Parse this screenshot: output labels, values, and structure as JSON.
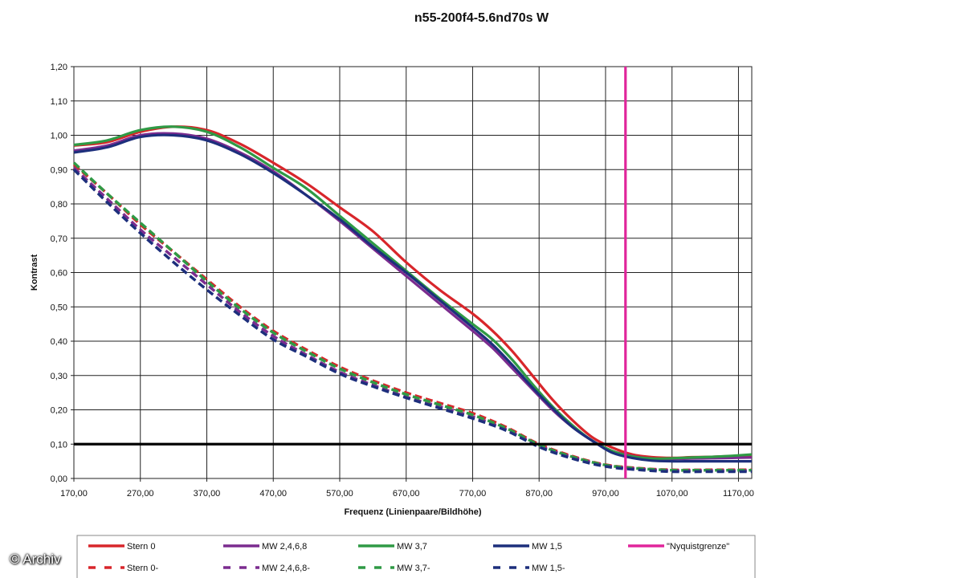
{
  "watermark": "© Archiv",
  "chart_data": {
    "type": "line",
    "title": "n55-200f4-5.6nd70s W",
    "xlabel": "Frequenz (Linienpaare/Bildhöhe)",
    "ylabel": "Kontrast",
    "xlim": [
      170,
      1190
    ],
    "ylim": [
      0,
      1.2
    ],
    "x_ticks": [
      "170,00",
      "270,00",
      "370,00",
      "470,00",
      "570,00",
      "670,00",
      "770,00",
      "870,00",
      "970,00",
      "1070,00",
      "1170,00"
    ],
    "y_ticks": [
      "0,00",
      "0,10",
      "0,20",
      "0,30",
      "0,40",
      "0,50",
      "0,60",
      "0,70",
      "0,80",
      "0,90",
      "1,00",
      "1,10",
      "1,20"
    ],
    "grid": true,
    "legend_position": "bottom",
    "reference_lines": [
      {
        "axis": "y",
        "value": 0.1,
        "color": "#000000"
      },
      {
        "name": "\"Nyquistgrenze\"",
        "axis": "x",
        "value": 1000,
        "color": "#e0259b"
      }
    ],
    "series": [
      {
        "name": "Stern 0",
        "style": "solid",
        "color": "#d8262b",
        "x": [
          170,
          220,
          270,
          320,
          370,
          420,
          470,
          520,
          570,
          620,
          670,
          720,
          770,
          800,
          830,
          860,
          890,
          920,
          950,
          980,
          1010,
          1040,
          1070,
          1100,
          1130,
          1160,
          1190
        ],
        "y": [
          0.97,
          0.98,
          1.01,
          1.025,
          1.015,
          0.975,
          0.92,
          0.86,
          0.79,
          0.72,
          0.63,
          0.55,
          0.48,
          0.43,
          0.37,
          0.3,
          0.23,
          0.17,
          0.12,
          0.09,
          0.07,
          0.062,
          0.06,
          0.062,
          0.063,
          0.065,
          0.067
        ]
      },
      {
        "name": "MW 2,4,6,8",
        "style": "solid",
        "color": "#7b2c8f",
        "x": [
          170,
          220,
          270,
          320,
          370,
          420,
          470,
          520,
          570,
          620,
          670,
          720,
          770,
          800,
          830,
          860,
          890,
          920,
          950,
          980,
          1010,
          1040,
          1070,
          1100,
          1130,
          1160,
          1190
        ],
        "y": [
          0.955,
          0.97,
          1.0,
          1.005,
          0.99,
          0.95,
          0.895,
          0.825,
          0.75,
          0.67,
          0.59,
          0.51,
          0.43,
          0.38,
          0.32,
          0.26,
          0.2,
          0.15,
          0.11,
          0.08,
          0.065,
          0.058,
          0.057,
          0.058,
          0.059,
          0.06,
          0.061
        ]
      },
      {
        "name": "MW 3,7",
        "style": "solid",
        "color": "#2f9a45",
        "x": [
          170,
          220,
          270,
          320,
          370,
          420,
          470,
          520,
          570,
          620,
          670,
          720,
          770,
          800,
          830,
          860,
          890,
          920,
          950,
          980,
          1010,
          1040,
          1070,
          1100,
          1130,
          1160,
          1190
        ],
        "y": [
          0.972,
          0.985,
          1.015,
          1.025,
          1.01,
          0.965,
          0.905,
          0.845,
          0.765,
          0.685,
          0.605,
          0.525,
          0.45,
          0.405,
          0.345,
          0.275,
          0.21,
          0.155,
          0.11,
          0.08,
          0.064,
          0.058,
          0.059,
          0.061,
          0.063,
          0.066,
          0.07
        ]
      },
      {
        "name": "MW 1,5",
        "style": "solid",
        "color": "#1d2f7c",
        "x": [
          170,
          220,
          270,
          320,
          370,
          420,
          470,
          520,
          570,
          620,
          670,
          720,
          770,
          800,
          830,
          860,
          890,
          920,
          950,
          980,
          1010,
          1040,
          1070,
          1100,
          1130,
          1160,
          1190
        ],
        "y": [
          0.95,
          0.965,
          0.995,
          1.0,
          0.985,
          0.945,
          0.89,
          0.825,
          0.755,
          0.675,
          0.6,
          0.52,
          0.44,
          0.39,
          0.33,
          0.265,
          0.205,
          0.15,
          0.11,
          0.075,
          0.06,
          0.052,
          0.05,
          0.05,
          0.05,
          0.05,
          0.05
        ]
      },
      {
        "name": "Stern 0-",
        "style": "dashed",
        "color": "#d8262b",
        "x": [
          170,
          220,
          270,
          320,
          370,
          420,
          470,
          520,
          570,
          620,
          670,
          720,
          770,
          820,
          870,
          920,
          970,
          1020,
          1070,
          1120,
          1170,
          1190
        ],
        "y": [
          0.915,
          0.83,
          0.74,
          0.66,
          0.58,
          0.5,
          0.43,
          0.375,
          0.325,
          0.285,
          0.25,
          0.22,
          0.19,
          0.15,
          0.1,
          0.065,
          0.04,
          0.03,
          0.025,
          0.025,
          0.025,
          0.025
        ]
      },
      {
        "name": "MW 2,4,6,8-",
        "style": "dashed",
        "color": "#7b2c8f",
        "x": [
          170,
          220,
          270,
          320,
          370,
          420,
          470,
          520,
          570,
          620,
          670,
          720,
          770,
          820,
          870,
          920,
          970,
          1020,
          1070,
          1120,
          1170,
          1190
        ],
        "y": [
          0.905,
          0.815,
          0.725,
          0.645,
          0.565,
          0.485,
          0.415,
          0.36,
          0.31,
          0.272,
          0.238,
          0.21,
          0.18,
          0.143,
          0.095,
          0.062,
          0.038,
          0.028,
          0.023,
          0.023,
          0.023,
          0.023
        ]
      },
      {
        "name": "MW 3,7-",
        "style": "dashed",
        "color": "#2f9a45",
        "x": [
          170,
          220,
          270,
          320,
          370,
          420,
          470,
          520,
          570,
          620,
          670,
          720,
          770,
          820,
          870,
          920,
          970,
          1020,
          1070,
          1120,
          1170,
          1190
        ],
        "y": [
          0.92,
          0.83,
          0.745,
          0.66,
          0.575,
          0.495,
          0.425,
          0.37,
          0.32,
          0.28,
          0.245,
          0.215,
          0.185,
          0.147,
          0.098,
          0.063,
          0.039,
          0.029,
          0.024,
          0.024,
          0.024,
          0.024
        ]
      },
      {
        "name": "MW 1,5-",
        "style": "dashed",
        "color": "#1d2f7c",
        "x": [
          170,
          220,
          270,
          320,
          370,
          420,
          470,
          520,
          570,
          620,
          670,
          720,
          770,
          820,
          870,
          920,
          970,
          1020,
          1070,
          1120,
          1170,
          1190
        ],
        "y": [
          0.9,
          0.805,
          0.715,
          0.63,
          0.55,
          0.475,
          0.405,
          0.355,
          0.305,
          0.268,
          0.235,
          0.205,
          0.175,
          0.14,
          0.092,
          0.058,
          0.035,
          0.025,
          0.02,
          0.02,
          0.02,
          0.02
        ]
      }
    ]
  }
}
